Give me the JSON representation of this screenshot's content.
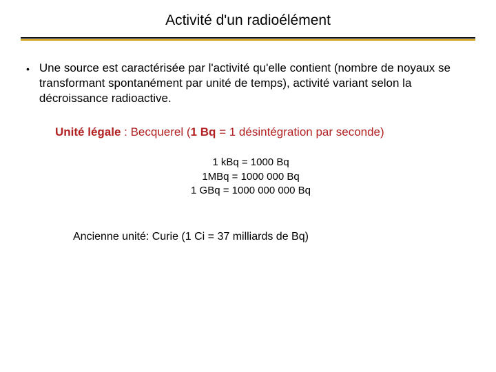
{
  "title": "Activité d'un radioélément",
  "bullet": {
    "marker": "•",
    "text": "Une source est caractérisée par l'activité qu'elle contient (nombre de noyaux se transformant spontanément par unité de temps), activité variant selon la décroissance radioactive."
  },
  "legal_unit": {
    "label": "Unité légale",
    "sep": " : Becquerel (",
    "bold_unit": "1 Bq",
    "tail": " = 1 désintégration par seconde)"
  },
  "conversions": {
    "line1": "1 kBq = 1000 Bq",
    "line2": "1MBq = 1000 000 Bq",
    "line3": "1 GBq = 1000 000 000 Bq"
  },
  "old_unit": "Ancienne unité: Curie (1 Ci = 37 milliards de Bq)",
  "colors": {
    "accent": "#cc9900",
    "emphasis": "#b22222",
    "text": "#000000",
    "background": "#ffffff"
  }
}
